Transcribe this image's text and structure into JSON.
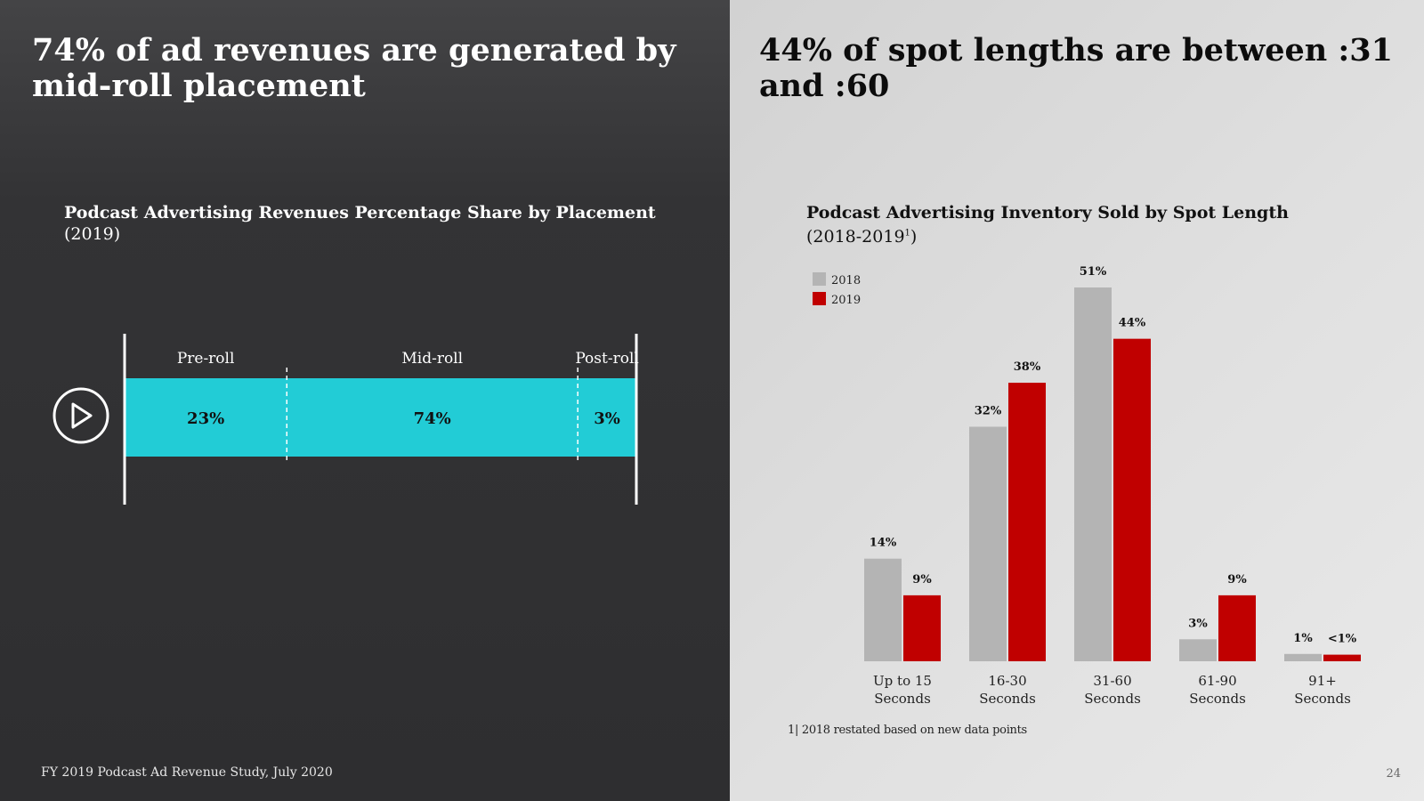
{
  "left": {
    "headline": "74% of ad revenues are generated by mid-roll placement",
    "chart_title": "Podcast Advertising Revenues Percentage Share by Placement",
    "chart_subtitle": "(2019)",
    "footer": "FY 2019 Podcast Ad Revenue Study, July 2020",
    "play_icon": "play-icon"
  },
  "right": {
    "headline": "44% of spot lengths are between :31 and :60",
    "chart_title": "Podcast Advertising Inventory Sold by Spot Length",
    "chart_subtitle_prefix": "(2018-2019",
    "chart_subtitle_sup": "1",
    "chart_subtitle_suffix": ")",
    "footnote": "1| 2018 restated based on new data points",
    "page_number": "24"
  },
  "colors": {
    "bar_teal": "#22ccd6",
    "series_2018": "#b4b4b4",
    "series_2019": "#c00000"
  },
  "chart_data": [
    {
      "type": "bar",
      "orientation": "horizontal-stacked",
      "title": "Podcast Advertising Revenues Percentage Share by Placement",
      "subtitle": "(2019)",
      "categories": [
        "Pre-roll",
        "Mid-roll",
        "Post-roll"
      ],
      "values": [
        23,
        74,
        3
      ],
      "labels": [
        "23%",
        "74%",
        "3%"
      ]
    },
    {
      "type": "bar",
      "orientation": "vertical-grouped",
      "title": "Podcast Advertising Inventory Sold by Spot Length",
      "subtitle": "(2018-2019)",
      "categories": [
        [
          "Up to 15",
          "Seconds"
        ],
        [
          "16-30",
          "Seconds"
        ],
        [
          "31-60",
          "Seconds"
        ],
        [
          "61-90",
          "Seconds"
        ],
        [
          "91+",
          "Seconds"
        ]
      ],
      "legend_position": "top-left",
      "series": [
        {
          "name": "2018",
          "values": [
            14,
            32,
            51,
            3,
            1
          ],
          "labels": [
            "14%",
            "32%",
            "51%",
            "3%",
            "1%"
          ]
        },
        {
          "name": "2019",
          "values": [
            9,
            38,
            44,
            9,
            0.5
          ],
          "labels": [
            "9%",
            "38%",
            "44%",
            "9%",
            "<1%"
          ]
        }
      ],
      "ylim": [
        0,
        51
      ]
    }
  ]
}
